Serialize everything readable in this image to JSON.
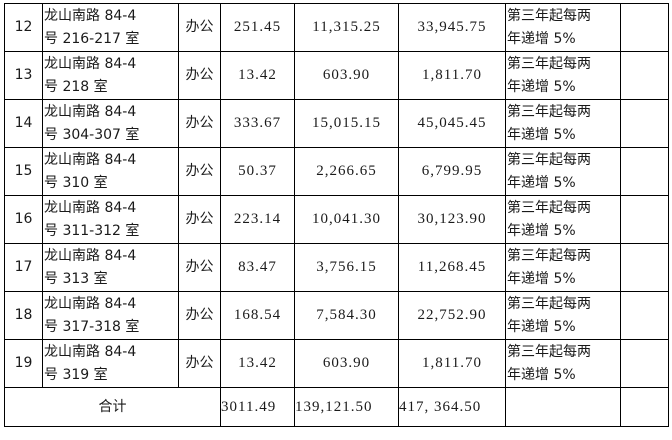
{
  "rows": [
    {
      "no": "12",
      "addr1": "龙山南路 84-4",
      "addr2": "号 216-217 室",
      "use": "办公",
      "area": "251.45",
      "v1": "11,315.25",
      "v2": "33,945.75",
      "note1": "第三年起每两",
      "note2": "年递增 5%"
    },
    {
      "no": "13",
      "addr1": "龙山南路 84-4",
      "addr2": "号 218 室",
      "use": "办公",
      "area": "13.42",
      "v1": "603.90",
      "v2": "1,811.70",
      "note1": "第三年起每两",
      "note2": "年递增 5%"
    },
    {
      "no": "14",
      "addr1": "龙山南路 84-4",
      "addr2": "号 304-307 室",
      "use": "办公",
      "area": "333.67",
      "v1": "15,015.15",
      "v2": "45,045.45",
      "note1": "第三年起每两",
      "note2": "年递增 5%"
    },
    {
      "no": "15",
      "addr1": "龙山南路 84-4",
      "addr2": "号 310 室",
      "use": "办公",
      "area": "50.37",
      "v1": "2,266.65",
      "v2": "6,799.95",
      "note1": "第三年起每两",
      "note2": "年递增 5%"
    },
    {
      "no": "16",
      "addr1": "龙山南路 84-4",
      "addr2": "号 311-312 室",
      "use": "办公",
      "area": "223.14",
      "v1": "10,041.30",
      "v2": "30,123.90",
      "note1": "第三年起每两",
      "note2": "年递增 5%"
    },
    {
      "no": "17",
      "addr1": "龙山南路 84-4",
      "addr2": "号 313 室",
      "use": "办公",
      "area": "83.47",
      "v1": "3,756.15",
      "v2": "11,268.45",
      "note1": "第三年起每两",
      "note2": "年递增 5%"
    },
    {
      "no": "18",
      "addr1": "龙山南路 84-4",
      "addr2": "号 317-318 室",
      "use": "办公",
      "area": "168.54",
      "v1": "7,584.30",
      "v2": "22,752.90",
      "note1": "第三年起每两",
      "note2": "年递增 5%"
    },
    {
      "no": "19",
      "addr1": "龙山南路 84-4",
      "addr2": "号 319 室",
      "use": "办公",
      "area": "13.42",
      "v1": "603.90",
      "v2": "1,811.70",
      "note1": "第三年起每两",
      "note2": "年递增 5%"
    }
  ],
  "total": {
    "label": "合计",
    "area": "3011.49",
    "v1": "139,121.50",
    "v2": "417, 364.50"
  }
}
